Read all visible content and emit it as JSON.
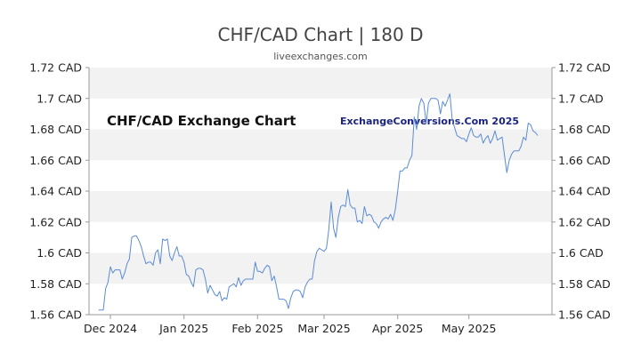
{
  "colors": {
    "line": "#5b8bd6",
    "band": "#f2f2f2",
    "axis": "#999999",
    "text": "#222222"
  },
  "chart_data": {
    "type": "line",
    "title": "CHF/CAD Chart | 180 D",
    "subtitle": "liveexchanges.com",
    "watermark_left": "CHF/CAD Exchange Chart",
    "watermark_right": "ExchangeConversions.Com 2025",
    "grid": false,
    "alternating_bands": true,
    "ylim": [
      1.56,
      1.72
    ],
    "y_ticks": [
      1.72,
      1.7,
      1.68,
      1.66,
      1.64,
      1.62,
      1.6,
      1.58,
      1.56
    ],
    "y_tick_labels": [
      "1.72 CAD",
      "1.7 CAD",
      "1.68 CAD",
      "1.66 CAD",
      "1.64 CAD",
      "1.62 CAD",
      "1.6 CAD",
      "1.58 CAD",
      "1.56 CAD"
    ],
    "y_axes": "left-and-right",
    "xlim": [
      "2024-11-22",
      "2025-06-05"
    ],
    "x_ticks": [
      {
        "label": "Dec 2024",
        "date": "2024-12-01"
      },
      {
        "label": "Jan 2025",
        "date": "2025-01-01"
      },
      {
        "label": "Feb 2025",
        "date": "2025-02-01"
      },
      {
        "label": "Mar 2025",
        "date": "2025-03-01"
      },
      {
        "label": "Apr 2025",
        "date": "2025-04-01"
      },
      {
        "label": "May 2025",
        "date": "2025-05-01"
      }
    ],
    "series": [
      {
        "values": [
          [
            "2024-11-26",
            1.563
          ],
          [
            "2024-11-28",
            1.563
          ],
          [
            "2024-11-29",
            1.577
          ],
          [
            "2024-11-30",
            1.581
          ],
          [
            "2024-12-01",
            1.591
          ],
          [
            "2024-12-02",
            1.587
          ],
          [
            "2024-12-03",
            1.589
          ],
          [
            "2024-12-04",
            1.589
          ],
          [
            "2024-12-05",
            1.589
          ],
          [
            "2024-12-06",
            1.583
          ],
          [
            "2024-12-07",
            1.587
          ],
          [
            "2024-12-08",
            1.593
          ],
          [
            "2024-12-09",
            1.596
          ],
          [
            "2024-12-10",
            1.61
          ],
          [
            "2024-12-11",
            1.611
          ],
          [
            "2024-12-12",
            1.611
          ],
          [
            "2024-12-13",
            1.608
          ],
          [
            "2024-12-14",
            1.604
          ],
          [
            "2024-12-15",
            1.598
          ],
          [
            "2024-12-16",
            1.593
          ],
          [
            "2024-12-17",
            1.594
          ],
          [
            "2024-12-18",
            1.594
          ],
          [
            "2024-12-19",
            1.592
          ],
          [
            "2024-12-20",
            1.6
          ],
          [
            "2024-12-21",
            1.602
          ],
          [
            "2024-12-22",
            1.593
          ],
          [
            "2024-12-23",
            1.609
          ],
          [
            "2024-12-24",
            1.608
          ],
          [
            "2024-12-25",
            1.609
          ],
          [
            "2024-12-26",
            1.598
          ],
          [
            "2024-12-27",
            1.595
          ],
          [
            "2024-12-28",
            1.6
          ],
          [
            "2024-12-29",
            1.604
          ],
          [
            "2024-12-30",
            1.598
          ],
          [
            "2024-12-31",
            1.598
          ],
          [
            "2025-01-01",
            1.594
          ],
          [
            "2025-01-02",
            1.586
          ],
          [
            "2025-01-03",
            1.585
          ],
          [
            "2025-01-04",
            1.581
          ],
          [
            "2025-01-05",
            1.578
          ],
          [
            "2025-01-06",
            1.589
          ],
          [
            "2025-01-07",
            1.59
          ],
          [
            "2025-01-08",
            1.59
          ],
          [
            "2025-01-09",
            1.589
          ],
          [
            "2025-01-10",
            1.583
          ],
          [
            "2025-01-11",
            1.574
          ],
          [
            "2025-01-12",
            1.579
          ],
          [
            "2025-01-13",
            1.576
          ],
          [
            "2025-01-14",
            1.573
          ],
          [
            "2025-01-15",
            1.572
          ],
          [
            "2025-01-16",
            1.575
          ],
          [
            "2025-01-17",
            1.569
          ],
          [
            "2025-01-18",
            1.571
          ],
          [
            "2025-01-19",
            1.57
          ],
          [
            "2025-01-20",
            1.578
          ],
          [
            "2025-01-21",
            1.579
          ],
          [
            "2025-01-22",
            1.58
          ],
          [
            "2025-01-23",
            1.578
          ],
          [
            "2025-01-24",
            1.584
          ],
          [
            "2025-01-25",
            1.579
          ],
          [
            "2025-01-26",
            1.582
          ],
          [
            "2025-01-27",
            1.583
          ],
          [
            "2025-01-28",
            1.583
          ],
          [
            "2025-01-29",
            1.583
          ],
          [
            "2025-01-30",
            1.583
          ],
          [
            "2025-01-31",
            1.594
          ],
          [
            "2025-02-01",
            1.588
          ],
          [
            "2025-02-02",
            1.588
          ],
          [
            "2025-02-03",
            1.587
          ],
          [
            "2025-02-04",
            1.59
          ],
          [
            "2025-02-05",
            1.592
          ],
          [
            "2025-02-06",
            1.591
          ],
          [
            "2025-02-07",
            1.582
          ],
          [
            "2025-02-08",
            1.585
          ],
          [
            "2025-02-09",
            1.578
          ],
          [
            "2025-02-10",
            1.57
          ],
          [
            "2025-02-11",
            1.57
          ],
          [
            "2025-02-12",
            1.57
          ],
          [
            "2025-02-13",
            1.569
          ],
          [
            "2025-02-14",
            1.564
          ],
          [
            "2025-02-15",
            1.571
          ],
          [
            "2025-02-16",
            1.575
          ],
          [
            "2025-02-17",
            1.576
          ],
          [
            "2025-02-18",
            1.576
          ],
          [
            "2025-02-19",
            1.575
          ],
          [
            "2025-02-20",
            1.571
          ],
          [
            "2025-02-21",
            1.578
          ],
          [
            "2025-02-22",
            1.581
          ],
          [
            "2025-02-23",
            1.583
          ],
          [
            "2025-02-24",
            1.583
          ],
          [
            "2025-02-25",
            1.595
          ],
          [
            "2025-02-26",
            1.601
          ],
          [
            "2025-02-27",
            1.603
          ],
          [
            "2025-02-28",
            1.602
          ],
          [
            "2025-03-01",
            1.601
          ],
          [
            "2025-03-02",
            1.603
          ],
          [
            "2025-03-03",
            1.615
          ],
          [
            "2025-03-04",
            1.633
          ],
          [
            "2025-03-05",
            1.616
          ],
          [
            "2025-03-06",
            1.61
          ],
          [
            "2025-03-07",
            1.623
          ],
          [
            "2025-03-08",
            1.63
          ],
          [
            "2025-03-09",
            1.631
          ],
          [
            "2025-03-10",
            1.63
          ],
          [
            "2025-03-11",
            1.641
          ],
          [
            "2025-03-12",
            1.631
          ],
          [
            "2025-03-13",
            1.629
          ],
          [
            "2025-03-14",
            1.629
          ],
          [
            "2025-03-15",
            1.62
          ],
          [
            "2025-03-16",
            1.621
          ],
          [
            "2025-03-17",
            1.619
          ],
          [
            "2025-03-18",
            1.63
          ],
          [
            "2025-03-19",
            1.624
          ],
          [
            "2025-03-20",
            1.625
          ],
          [
            "2025-03-21",
            1.624
          ],
          [
            "2025-03-22",
            1.62
          ],
          [
            "2025-03-23",
            1.619
          ],
          [
            "2025-03-24",
            1.616
          ],
          [
            "2025-03-25",
            1.62
          ],
          [
            "2025-03-26",
            1.622
          ],
          [
            "2025-03-27",
            1.623
          ],
          [
            "2025-03-28",
            1.622
          ],
          [
            "2025-03-29",
            1.625
          ],
          [
            "2025-03-30",
            1.621
          ],
          [
            "2025-03-31",
            1.628
          ],
          [
            "2025-04-01",
            1.64
          ],
          [
            "2025-04-02",
            1.653
          ],
          [
            "2025-04-03",
            1.653
          ],
          [
            "2025-04-04",
            1.655
          ],
          [
            "2025-04-05",
            1.655
          ],
          [
            "2025-04-06",
            1.66
          ],
          [
            "2025-04-07",
            1.663
          ],
          [
            "2025-04-08",
            1.688
          ],
          [
            "2025-04-09",
            1.68
          ],
          [
            "2025-04-10",
            1.695
          ],
          [
            "2025-04-11",
            1.7
          ],
          [
            "2025-04-12",
            1.697
          ],
          [
            "2025-04-13",
            1.684
          ],
          [
            "2025-04-14",
            1.697
          ],
          [
            "2025-04-15",
            1.7
          ],
          [
            "2025-04-16",
            1.7
          ],
          [
            "2025-04-17",
            1.7
          ],
          [
            "2025-04-18",
            1.699
          ],
          [
            "2025-04-19",
            1.69
          ],
          [
            "2025-04-20",
            1.698
          ],
          [
            "2025-04-21",
            1.695
          ],
          [
            "2025-04-22",
            1.699
          ],
          [
            "2025-04-23",
            1.703
          ],
          [
            "2025-04-24",
            1.686
          ],
          [
            "2025-04-25",
            1.681
          ],
          [
            "2025-04-26",
            1.676
          ],
          [
            "2025-04-27",
            1.675
          ],
          [
            "2025-04-28",
            1.674
          ],
          [
            "2025-04-29",
            1.674
          ],
          [
            "2025-04-30",
            1.672
          ],
          [
            "2025-05-01",
            1.677
          ],
          [
            "2025-05-02",
            1.681
          ],
          [
            "2025-05-03",
            1.676
          ],
          [
            "2025-05-04",
            1.675
          ],
          [
            "2025-05-05",
            1.675
          ],
          [
            "2025-05-06",
            1.677
          ],
          [
            "2025-05-07",
            1.671
          ],
          [
            "2025-05-08",
            1.674
          ],
          [
            "2025-05-09",
            1.676
          ],
          [
            "2025-05-10",
            1.671
          ],
          [
            "2025-05-11",
            1.674
          ],
          [
            "2025-05-12",
            1.679
          ],
          [
            "2025-05-13",
            1.673
          ],
          [
            "2025-05-14",
            1.674
          ],
          [
            "2025-05-15",
            1.675
          ],
          [
            "2025-05-16",
            1.663
          ],
          [
            "2025-05-17",
            1.652
          ],
          [
            "2025-05-18",
            1.66
          ],
          [
            "2025-05-19",
            1.664
          ],
          [
            "2025-05-20",
            1.666
          ],
          [
            "2025-05-21",
            1.666
          ],
          [
            "2025-05-22",
            1.666
          ],
          [
            "2025-05-23",
            1.669
          ],
          [
            "2025-05-24",
            1.675
          ],
          [
            "2025-05-25",
            1.673
          ],
          [
            "2025-05-26",
            1.684
          ],
          [
            "2025-05-27",
            1.683
          ],
          [
            "2025-05-28",
            1.679
          ],
          [
            "2025-05-29",
            1.678
          ],
          [
            "2025-05-30",
            1.676
          ]
        ]
      }
    ]
  }
}
